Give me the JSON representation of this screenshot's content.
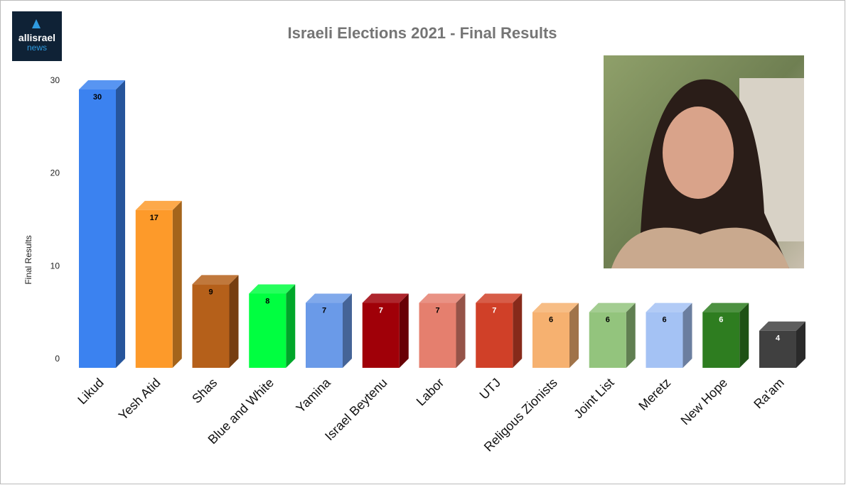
{
  "logo": {
    "line1": "allisrael",
    "line2": "news"
  },
  "chart_data": {
    "type": "bar3d",
    "title": "Israeli Elections 2021 - Final Results",
    "ylabel": "Final Results",
    "categories": [
      "Likud",
      "Yesh Atid",
      "Shas",
      "Blue and White",
      "Yamina",
      "Israel Beytenu",
      "Labor",
      "UTJ",
      "Religous Zionists",
      "Joint List",
      "Meretz",
      "New Hope",
      "Ra'am"
    ],
    "values": [
      30,
      17,
      9,
      8,
      7,
      7,
      7,
      7,
      6,
      6,
      6,
      6,
      4
    ],
    "colors": [
      "#3b82f0",
      "#fd9a2a",
      "#b5601a",
      "#00ff40",
      "#6a9ae8",
      "#a00008",
      "#e57f6e",
      "#d04028",
      "#f6b170",
      "#93c47d",
      "#a4c2f4",
      "#2e7d20",
      "#404040"
    ],
    "ylim": [
      0,
      30
    ],
    "yticks": [
      0,
      10,
      20,
      30
    ]
  }
}
